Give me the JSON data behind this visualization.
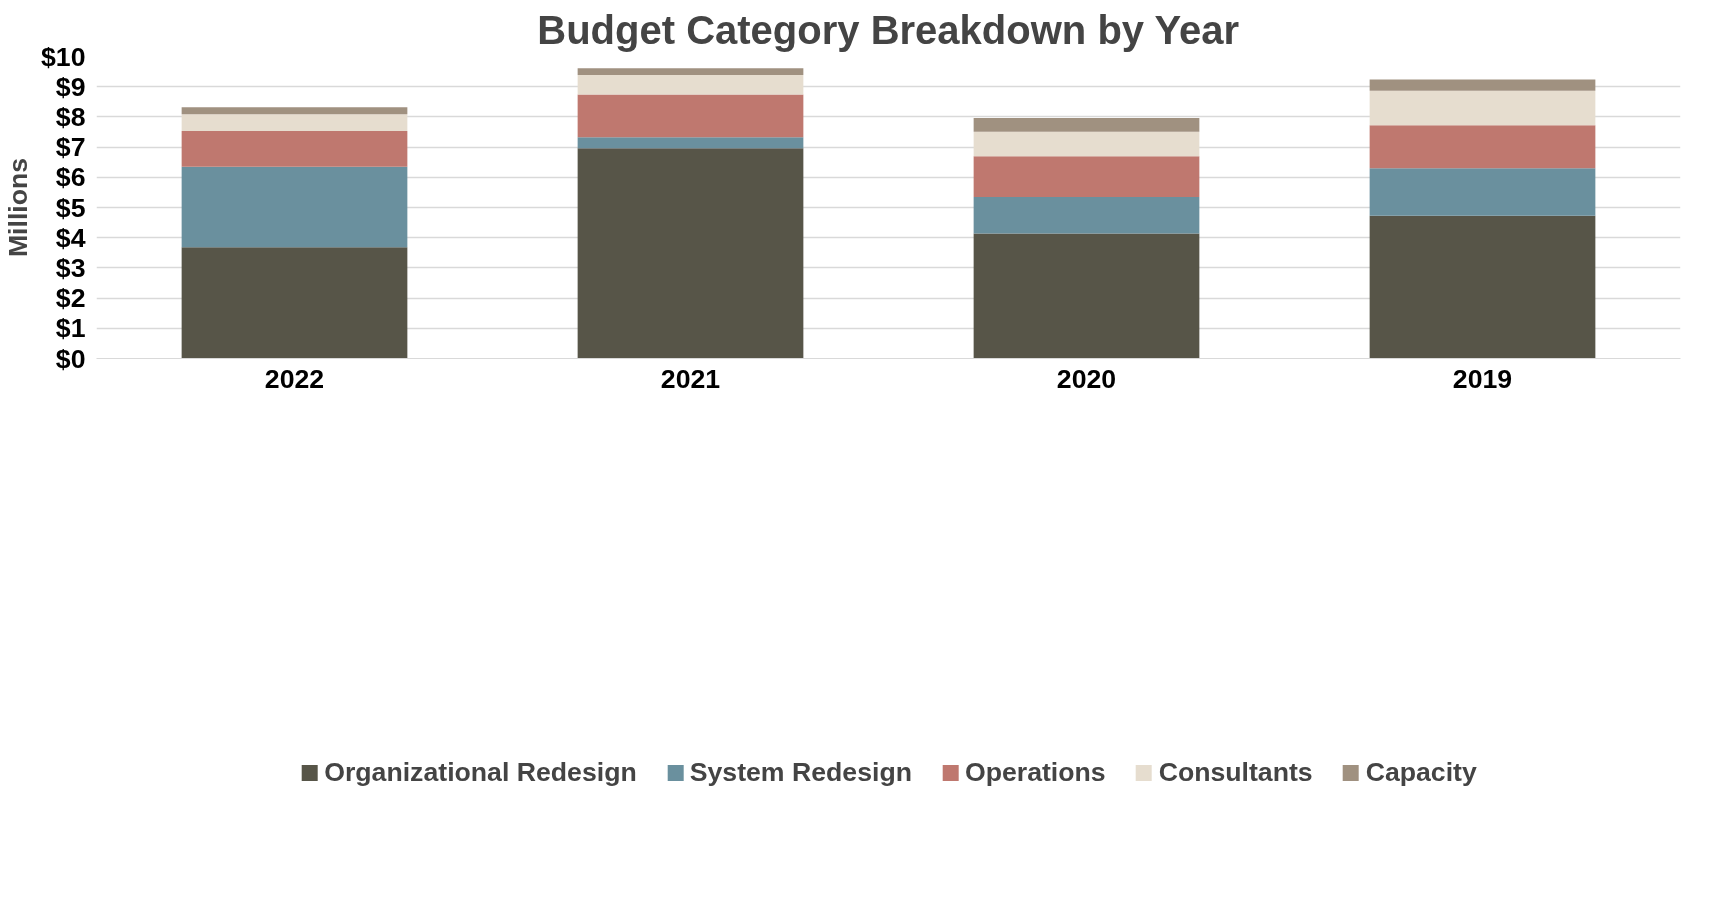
{
  "chart_data": {
    "type": "bar",
    "title": "Budget Category Breakdown by Year",
    "ylabel": "Millions",
    "categories": [
      "2022",
      "2021",
      "2020",
      "2019"
    ],
    "stacked": true,
    "series": [
      {
        "name": "Organizational Redesign",
        "color": "#575548",
        "values": [
          3.68,
          6.96,
          4.14,
          4.73
        ]
      },
      {
        "name": "System Redesign",
        "color": "#6a909e",
        "values": [
          2.67,
          0.37,
          1.21,
          1.57
        ]
      },
      {
        "name": "Operations",
        "color": "#bf786f",
        "values": [
          1.18,
          1.41,
          1.35,
          1.42
        ]
      },
      {
        "name": "Consultants",
        "color": "#e6ddcf",
        "values": [
          0.56,
          0.65,
          0.81,
          1.15
        ]
      },
      {
        "name": "Capacity",
        "color": "#a09180",
        "values": [
          0.23,
          0.22,
          0.45,
          0.37
        ]
      }
    ],
    "ylim": [
      0,
      10
    ],
    "yticks": [
      {
        "value": 0,
        "label": "$0"
      },
      {
        "value": 1,
        "label": "$1"
      },
      {
        "value": 2,
        "label": "$2"
      },
      {
        "value": 3,
        "label": "$3"
      },
      {
        "value": 4,
        "label": "$4"
      },
      {
        "value": 5,
        "label": "$5"
      },
      {
        "value": 6,
        "label": "$6"
      },
      {
        "value": 7,
        "label": "$7"
      },
      {
        "value": 8,
        "label": "$8"
      },
      {
        "value": 9,
        "label": "$9"
      },
      {
        "value": 10,
        "label": "$10"
      }
    ],
    "grid": "y",
    "legend": "bottom"
  }
}
